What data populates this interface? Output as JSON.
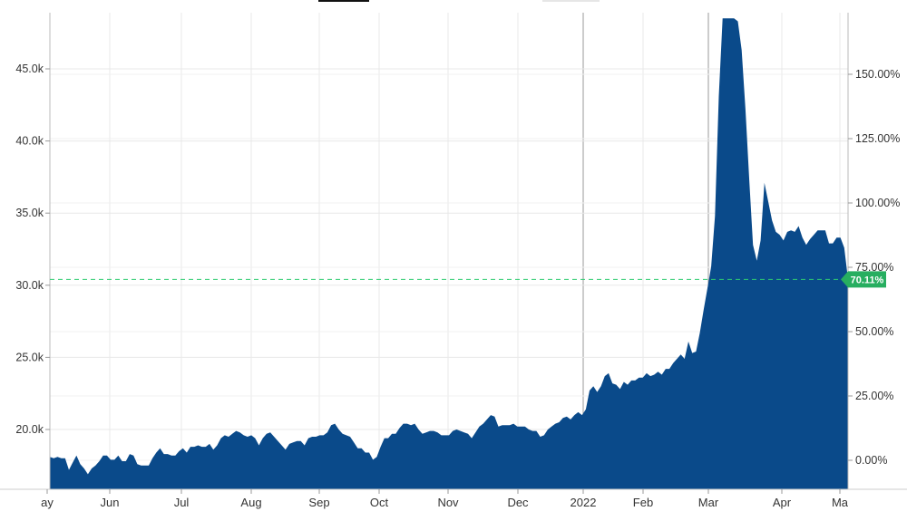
{
  "chart_data": {
    "type": "area",
    "title": "",
    "xlabel": "",
    "ylabel": "",
    "x_ticks": [
      "ay",
      "Jun",
      "Jul",
      "Aug",
      "Sep",
      "Oct",
      "Nov",
      "Dec",
      "2022",
      "Feb",
      "Mar",
      "Apr",
      "Ma"
    ],
    "y_left_ticks": [
      "20.0k",
      "25.0k",
      "30.0k",
      "35.0k",
      "40.0k",
      "45.0k"
    ],
    "y_right_ticks": [
      "0.00%",
      "25.00%",
      "50.00%",
      "75.00%",
      "100.00%",
      "125.00%",
      "150.00%"
    ],
    "ylim_left": [
      16500,
      49000
    ],
    "ylim_right": [
      "-11%",
      "172%"
    ],
    "current_value_label": "70.11%",
    "current_value_line": 30400,
    "grid": true,
    "area_color": "#0a4a8a",
    "reference_line_color": "#2ecc71",
    "series": [
      {
        "name": "",
        "values": [
          [
            0,
            18100
          ],
          [
            2,
            18000
          ],
          [
            4,
            18100
          ],
          [
            6,
            18000
          ],
          [
            8,
            18000
          ],
          [
            10,
            17200
          ],
          [
            12,
            17700
          ],
          [
            14,
            18200
          ],
          [
            16,
            17600
          ],
          [
            18,
            17300
          ],
          [
            20,
            16900
          ],
          [
            22,
            17300
          ],
          [
            24,
            17500
          ],
          [
            26,
            17800
          ],
          [
            28,
            18200
          ],
          [
            30,
            18200
          ],
          [
            32,
            17900
          ],
          [
            34,
            17900
          ],
          [
            36,
            18200
          ],
          [
            38,
            17800
          ],
          [
            40,
            17800
          ],
          [
            42,
            18300
          ],
          [
            44,
            18200
          ],
          [
            46,
            17600
          ],
          [
            48,
            17500
          ],
          [
            50,
            17500
          ],
          [
            52,
            17500
          ],
          [
            54,
            18000
          ],
          [
            56,
            18400
          ],
          [
            58,
            18700
          ],
          [
            60,
            18300
          ],
          [
            62,
            18300
          ],
          [
            64,
            18200
          ],
          [
            66,
            18200
          ],
          [
            68,
            18500
          ],
          [
            70,
            18700
          ],
          [
            72,
            18400
          ],
          [
            74,
            18800
          ],
          [
            76,
            18800
          ],
          [
            78,
            18900
          ],
          [
            80,
            18800
          ],
          [
            82,
            18800
          ],
          [
            84,
            19000
          ],
          [
            86,
            18600
          ],
          [
            88,
            18900
          ],
          [
            90,
            19400
          ],
          [
            92,
            19600
          ],
          [
            94,
            19500
          ],
          [
            96,
            19700
          ],
          [
            98,
            19900
          ],
          [
            100,
            19800
          ],
          [
            102,
            19600
          ],
          [
            104,
            19500
          ],
          [
            106,
            19600
          ],
          [
            108,
            19400
          ],
          [
            110,
            18900
          ],
          [
            112,
            19400
          ],
          [
            114,
            19700
          ],
          [
            116,
            19800
          ],
          [
            118,
            19500
          ],
          [
            120,
            19200
          ],
          [
            122,
            18900
          ],
          [
            124,
            18600
          ],
          [
            126,
            19000
          ],
          [
            128,
            19100
          ],
          [
            130,
            19200
          ],
          [
            132,
            19200
          ],
          [
            134,
            18900
          ],
          [
            136,
            19400
          ],
          [
            138,
            19500
          ],
          [
            140,
            19500
          ],
          [
            142,
            19600
          ],
          [
            144,
            19600
          ],
          [
            146,
            19800
          ],
          [
            148,
            20300
          ],
          [
            150,
            20400
          ],
          [
            152,
            20000
          ],
          [
            154,
            19700
          ],
          [
            156,
            19600
          ],
          [
            158,
            19500
          ],
          [
            160,
            19100
          ],
          [
            162,
            18700
          ],
          [
            164,
            18700
          ],
          [
            166,
            18400
          ],
          [
            168,
            18400
          ],
          [
            170,
            17900
          ],
          [
            172,
            18100
          ],
          [
            174,
            18800
          ],
          [
            176,
            19400
          ],
          [
            178,
            19400
          ],
          [
            180,
            19700
          ],
          [
            182,
            19700
          ],
          [
            184,
            20100
          ],
          [
            186,
            20400
          ],
          [
            188,
            20400
          ],
          [
            190,
            20300
          ],
          [
            192,
            20400
          ],
          [
            194,
            20000
          ],
          [
            196,
            19700
          ],
          [
            198,
            19800
          ],
          [
            200,
            19900
          ],
          [
            202,
            19900
          ],
          [
            204,
            19800
          ],
          [
            206,
            19600
          ],
          [
            208,
            19600
          ],
          [
            210,
            19600
          ],
          [
            212,
            19900
          ],
          [
            214,
            20000
          ],
          [
            216,
            19900
          ],
          [
            218,
            19800
          ],
          [
            220,
            19700
          ],
          [
            222,
            19400
          ],
          [
            224,
            19800
          ],
          [
            226,
            20200
          ],
          [
            228,
            20400
          ],
          [
            230,
            20700
          ],
          [
            232,
            21000
          ],
          [
            234,
            20900
          ],
          [
            236,
            20200
          ],
          [
            238,
            20300
          ],
          [
            240,
            20300
          ],
          [
            242,
            20300
          ],
          [
            244,
            20400
          ],
          [
            246,
            20200
          ],
          [
            248,
            20200
          ],
          [
            250,
            20200
          ],
          [
            252,
            20000
          ],
          [
            254,
            19900
          ],
          [
            256,
            19900
          ],
          [
            258,
            19500
          ],
          [
            260,
            19600
          ],
          [
            262,
            20000
          ],
          [
            264,
            20200
          ],
          [
            266,
            20400
          ],
          [
            268,
            20500
          ],
          [
            270,
            20800
          ],
          [
            272,
            20900
          ],
          [
            274,
            20700
          ],
          [
            276,
            21000
          ],
          [
            278,
            21200
          ],
          [
            280,
            21000
          ],
          [
            282,
            21400
          ],
          [
            284,
            22700
          ],
          [
            286,
            23000
          ],
          [
            288,
            22600
          ],
          [
            290,
            23000
          ],
          [
            292,
            23700
          ],
          [
            294,
            23900
          ],
          [
            296,
            23200
          ],
          [
            298,
            23100
          ],
          [
            300,
            22800
          ],
          [
            302,
            23300
          ],
          [
            304,
            23100
          ],
          [
            306,
            23400
          ],
          [
            308,
            23400
          ],
          [
            310,
            23600
          ],
          [
            312,
            23600
          ],
          [
            314,
            23900
          ],
          [
            316,
            23700
          ],
          [
            318,
            23800
          ],
          [
            320,
            24000
          ],
          [
            322,
            23800
          ],
          [
            324,
            24200
          ],
          [
            326,
            24200
          ],
          [
            328,
            24600
          ],
          [
            330,
            24900
          ],
          [
            332,
            25200
          ],
          [
            334,
            24900
          ],
          [
            336,
            26100
          ],
          [
            338,
            25300
          ],
          [
            340,
            25400
          ],
          [
            342,
            26700
          ],
          [
            344,
            28300
          ],
          [
            346,
            29800
          ],
          [
            348,
            31300
          ],
          [
            350,
            34800
          ],
          [
            352,
            43100
          ],
          [
            354,
            48500
          ],
          [
            356,
            48500
          ],
          [
            358,
            48500
          ],
          [
            360,
            48500
          ],
          [
            362,
            48300
          ],
          [
            364,
            46300
          ],
          [
            366,
            42200
          ],
          [
            368,
            37400
          ],
          [
            370,
            32800
          ],
          [
            372,
            31700
          ],
          [
            374,
            33100
          ],
          [
            376,
            37100
          ],
          [
            378,
            35800
          ],
          [
            380,
            34500
          ],
          [
            382,
            33700
          ],
          [
            384,
            33500
          ],
          [
            386,
            33100
          ],
          [
            388,
            33700
          ],
          [
            390,
            33800
          ],
          [
            392,
            33700
          ],
          [
            394,
            34100
          ],
          [
            396,
            33300
          ],
          [
            398,
            32800
          ],
          [
            400,
            33200
          ],
          [
            402,
            33500
          ],
          [
            404,
            33800
          ],
          [
            406,
            33800
          ],
          [
            408,
            33800
          ],
          [
            410,
            32900
          ],
          [
            412,
            32900
          ],
          [
            414,
            33300
          ],
          [
            416,
            33300
          ],
          [
            418,
            32600
          ],
          [
            420,
            30400
          ]
        ]
      }
    ]
  }
}
